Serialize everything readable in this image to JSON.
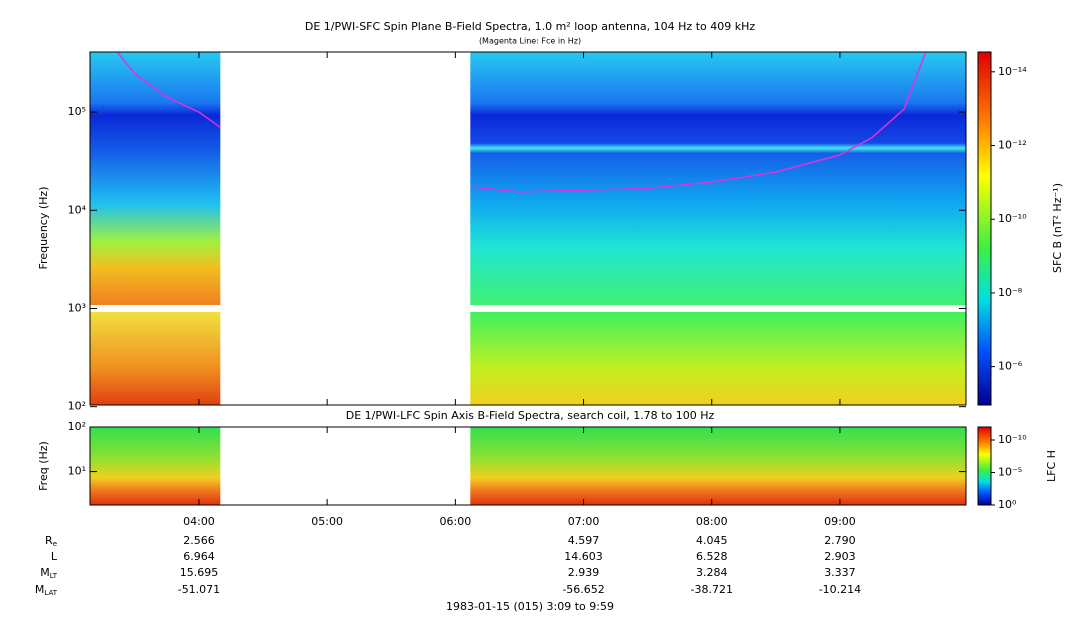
{
  "chart_data": {
    "type": "spectrogram",
    "title": "DE 1/PWI-SFC  Spin Plane B-Field Spectra, 1.0 m² loop antenna, 104 Hz to 409 kHz",
    "subtitle": "(Magenta Line: Fce in Hz)",
    "ylabel": "Frequency (Hz)",
    "colorbar_label": "SFC B (nT² Hz⁻¹)",
    "log_y": true,
    "ylim": [
      104,
      409000
    ],
    "yticks": [
      {
        "value": 100,
        "label": "10²"
      },
      {
        "value": 1000,
        "label": "10³"
      },
      {
        "value": 10000,
        "label": "10⁴"
      },
      {
        "value": 100000,
        "label": "10⁵"
      }
    ],
    "clim": [
      1.1e-05,
      2.9e-15
    ],
    "cticks": [
      {
        "value": 1e-06,
        "label": "10⁻⁶"
      },
      {
        "value": 1e-08,
        "label": "10⁻⁸"
      },
      {
        "value": 1e-10,
        "label": "10⁻¹⁰"
      },
      {
        "value": 1e-12,
        "label": "10⁻¹²"
      },
      {
        "value": 1e-14,
        "label": "10⁻¹⁴"
      }
    ],
    "xlim": [
      "1983-01-15 03:09",
      "1983-01-15 09:59"
    ],
    "xticks": [
      {
        "value": "1983-01-15 04:00",
        "label": "04:00"
      },
      {
        "value": "1983-01-15 05:00",
        "label": "05:00"
      },
      {
        "value": "1983-01-15 06:00",
        "label": "06:00"
      },
      {
        "value": "1983-01-15 07:00",
        "label": "07:00"
      },
      {
        "value": "1983-01-15 08:00",
        "label": "08:00"
      },
      {
        "value": "1983-01-15 09:00",
        "label": "09:00"
      }
    ],
    "data_gaps": [
      [
        "1983-01-15 04:10",
        "1983-01-15 06:07"
      ]
    ],
    "x": [
      "1983-01-15 03:22",
      "1983-01-15 03:30",
      "1983-01-15 03:45",
      "1983-01-15 04:00",
      "1983-01-15 04:10",
      "1983-01-15 05:00",
      "1983-01-15 06:08",
      "1983-01-15 06:30",
      "1983-01-15 07:00",
      "1983-01-15 07:30",
      "1983-01-15 08:00",
      "1983-01-15 08:30",
      "1983-01-15 09:00",
      "1983-01-15 09:15",
      "1983-01-15 09:30",
      "1983-01-15 09:40"
    ],
    "series": [
      {
        "name": "Fce",
        "color": "#e030e0",
        "values": [
          400000,
          245000,
          142000,
          100000,
          70000,
          null,
          17200,
          15400,
          16000,
          16700,
          19400,
          24500,
          36600,
          55000,
          107000,
          400000
        ]
      }
    ],
    "lower": {
      "title": "DE 1/PWI-LFC  Spin Axis B-Field Spectra, search coil, 1.78 to 100 Hz",
      "ylabel": "Freq (Hz)",
      "colorbar_label": "LFC H",
      "log_y": true,
      "ylim": [
        1.78,
        100
      ],
      "yticks": [
        {
          "value": 10,
          "label": "10¹"
        },
        {
          "value": 100,
          "label": "10²"
        }
      ],
      "clim": [
        1,
        1e-12
      ],
      "cticks": [
        {
          "value": 1,
          "label": "10⁰"
        },
        {
          "value": 1e-05,
          "label": "10⁻⁵"
        },
        {
          "value": 1e-10,
          "label": "10⁻¹⁰"
        }
      ]
    },
    "ephemeris": {
      "rows": [
        {
          "label": "Re",
          "values": [
            2.566,
            null,
            null,
            4.597,
            4.045,
            2.79
          ],
          "value_labels": [
            "2.566",
            null,
            null,
            "4.597",
            "4.045",
            "2.790"
          ]
        },
        {
          "label": "L",
          "values": [
            6.964,
            null,
            null,
            14.603,
            6.528,
            2.903
          ]
        },
        {
          "label": "MLT",
          "values": [
            15.695,
            null,
            null,
            2.939,
            3.284,
            3.337
          ]
        },
        {
          "label": "MLAT",
          "values": [
            -51.071,
            null,
            null,
            -56.652,
            -38.721,
            -10.214
          ]
        }
      ]
    },
    "footer": "1983-01-15 (015) 3:09 to 9:59"
  }
}
